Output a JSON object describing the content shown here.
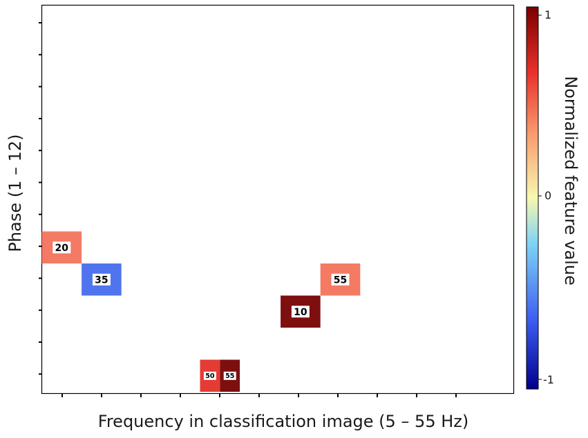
{
  "chart_data": {
    "type": "heatmap",
    "xlabel": "Frequency in classification image (5 – 55 Hz)",
    "ylabel": "Phase (1 – 12)",
    "x_range": [
      1,
      11
    ],
    "y_range": [
      1,
      12
    ],
    "colorbar": {
      "label": "Normalized feature value",
      "ticks": [
        "1",
        "0",
        "-1"
      ],
      "range": [
        -1,
        1
      ],
      "colors": [
        "#00008b",
        "#3c5ef0",
        "#7fd3f5",
        "#f7f8b0",
        "#f8a070",
        "#e8302a",
        "#7a0000"
      ]
    },
    "cells": [
      {
        "col": 0,
        "row": 7,
        "value": 0.55,
        "label": "20",
        "color": "#f47a66"
      },
      {
        "col": 1,
        "row": 8,
        "value": -0.6,
        "label": "35",
        "color": "#4f74ee"
      },
      {
        "col": 6,
        "row": 9,
        "value": 1.0,
        "label": "10",
        "color": "#7e0f0f"
      },
      {
        "col": 7,
        "row": 8,
        "value": 0.6,
        "label": "55",
        "color": "#f47a64"
      },
      {
        "col": 4,
        "row": 11,
        "value": 0.8,
        "label": "50",
        "color": "#e53b35"
      },
      {
        "col": 5,
        "row": 11,
        "value": 1.0,
        "label": "55",
        "color": "#7e0f0f"
      }
    ],
    "grid": false,
    "legend": "colorbar-right"
  }
}
